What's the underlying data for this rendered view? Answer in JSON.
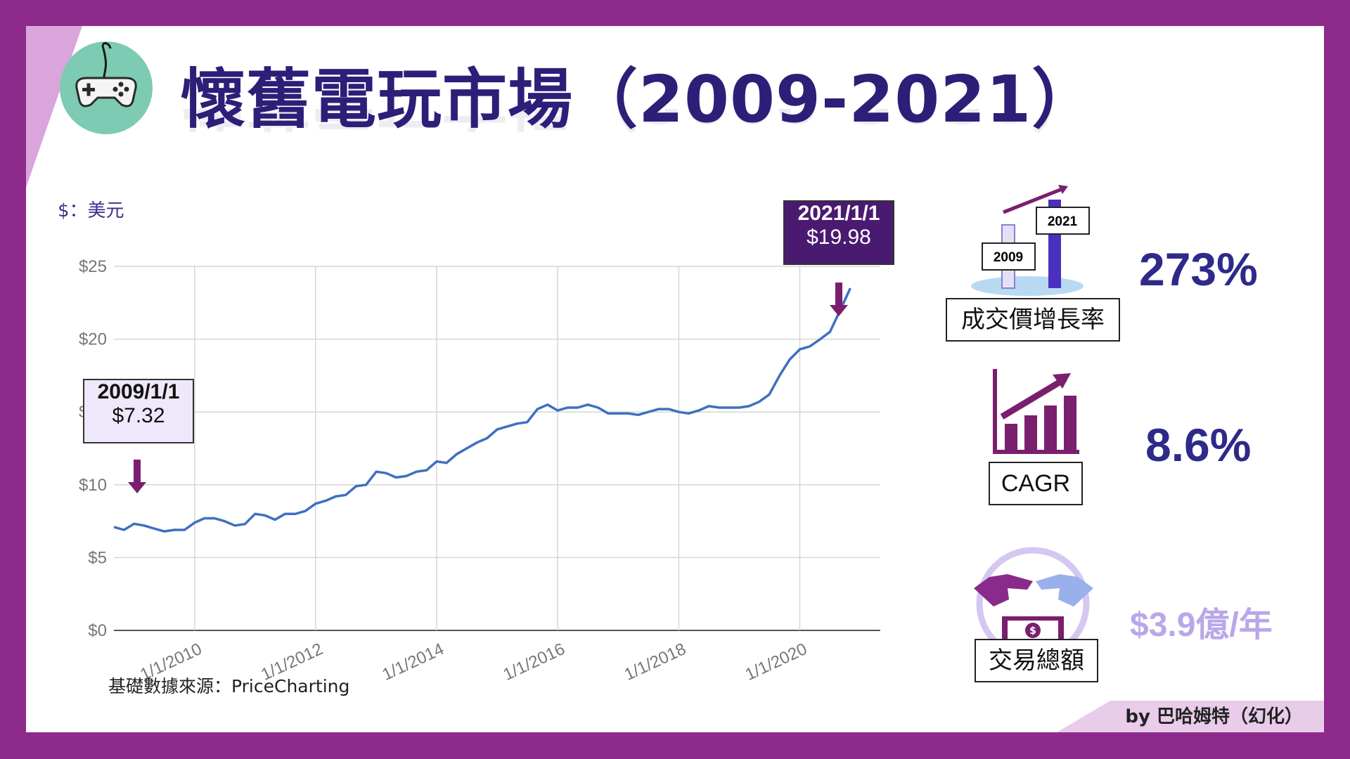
{
  "title": "懷舊電玩市場（2009-2021）",
  "unit_label": "$：美元",
  "source": "基礎數據來源：PriceCharting",
  "byline": "by 巴哈姆特（幻化）",
  "callouts": {
    "start": {
      "date": "2009/1/1",
      "price": "$7.32"
    },
    "end": {
      "date": "2021/1/1",
      "price": "$19.98"
    }
  },
  "kpis": {
    "growth": {
      "label": "成交價增長率",
      "value": "273%",
      "bar_labels": [
        "2009",
        "2021"
      ]
    },
    "cagr": {
      "label": "CAGR",
      "value": "8.6%"
    },
    "volume": {
      "label": "交易總額",
      "value": "$3.9億/年"
    }
  },
  "icons": [
    "gamepad-icon",
    "growth-bars-icon",
    "rising-chart-icon",
    "handshake-money-icon"
  ],
  "colors": {
    "line": "#3f6fc0",
    "accent": "#8e2a8c",
    "title": "#2e1e78"
  },
  "chart_data": {
    "type": "line",
    "title": "",
    "xlabel": "",
    "ylabel": "",
    "ylim": [
      0,
      25
    ],
    "y_ticks": [
      "$0",
      "$5",
      "$10",
      "$15",
      "$20",
      "$25"
    ],
    "x_ticks": [
      "1/1/2010",
      "1/1/2012",
      "1/1/2014",
      "1/1/2016",
      "1/1/2018",
      "1/1/2020"
    ],
    "grid": true,
    "series": [
      {
        "values": [
          [
            "2008-09",
            7.1
          ],
          [
            "2008-11",
            6.9
          ],
          [
            "2009-01",
            7.32
          ],
          [
            "2009-03",
            7.2
          ],
          [
            "2009-05",
            7.0
          ],
          [
            "2009-07",
            6.8
          ],
          [
            "2009-09",
            6.9
          ],
          [
            "2009-11",
            6.9
          ],
          [
            "2010-01",
            7.4
          ],
          [
            "2010-03",
            7.7
          ],
          [
            "2010-05",
            7.7
          ],
          [
            "2010-07",
            7.5
          ],
          [
            "2010-09",
            7.2
          ],
          [
            "2010-11",
            7.3
          ],
          [
            "2011-01",
            8.0
          ],
          [
            "2011-03",
            7.9
          ],
          [
            "2011-05",
            7.6
          ],
          [
            "2011-07",
            8.0
          ],
          [
            "2011-09",
            8.0
          ],
          [
            "2011-11",
            8.2
          ],
          [
            "2012-01",
            8.7
          ],
          [
            "2012-03",
            8.9
          ],
          [
            "2012-05",
            9.2
          ],
          [
            "2012-07",
            9.3
          ],
          [
            "2012-09",
            9.9
          ],
          [
            "2012-11",
            10.0
          ],
          [
            "2013-01",
            10.9
          ],
          [
            "2013-03",
            10.8
          ],
          [
            "2013-05",
            10.5
          ],
          [
            "2013-07",
            10.6
          ],
          [
            "2013-09",
            10.9
          ],
          [
            "2013-11",
            11.0
          ],
          [
            "2014-01",
            11.6
          ],
          [
            "2014-03",
            11.5
          ],
          [
            "2014-05",
            12.1
          ],
          [
            "2014-07",
            12.5
          ],
          [
            "2014-09",
            12.9
          ],
          [
            "2014-11",
            13.2
          ],
          [
            "2015-01",
            13.8
          ],
          [
            "2015-03",
            14.0
          ],
          [
            "2015-05",
            14.2
          ],
          [
            "2015-07",
            14.3
          ],
          [
            "2015-09",
            15.2
          ],
          [
            "2015-11",
            15.5
          ],
          [
            "2016-01",
            15.1
          ],
          [
            "2016-03",
            15.3
          ],
          [
            "2016-05",
            15.3
          ],
          [
            "2016-07",
            15.5
          ],
          [
            "2016-09",
            15.3
          ],
          [
            "2016-11",
            14.9
          ],
          [
            "2017-01",
            14.9
          ],
          [
            "2017-03",
            14.9
          ],
          [
            "2017-05",
            14.8
          ],
          [
            "2017-07",
            15.0
          ],
          [
            "2017-09",
            15.2
          ],
          [
            "2017-11",
            15.2
          ],
          [
            "2018-01",
            15.0
          ],
          [
            "2018-03",
            14.9
          ],
          [
            "2018-05",
            15.1
          ],
          [
            "2018-07",
            15.4
          ],
          [
            "2018-09",
            15.3
          ],
          [
            "2018-11",
            15.3
          ],
          [
            "2019-01",
            15.3
          ],
          [
            "2019-03",
            15.4
          ],
          [
            "2019-05",
            15.7
          ],
          [
            "2019-07",
            16.2
          ],
          [
            "2019-09",
            17.5
          ],
          [
            "2019-11",
            18.6
          ],
          [
            "2020-01",
            19.3
          ],
          [
            "2020-03",
            19.5
          ],
          [
            "2020-05",
            19.98
          ],
          [
            "2020-07",
            20.5
          ],
          [
            "2020-09",
            22.0
          ],
          [
            "2020-11",
            23.5
          ]
        ]
      }
    ]
  }
}
